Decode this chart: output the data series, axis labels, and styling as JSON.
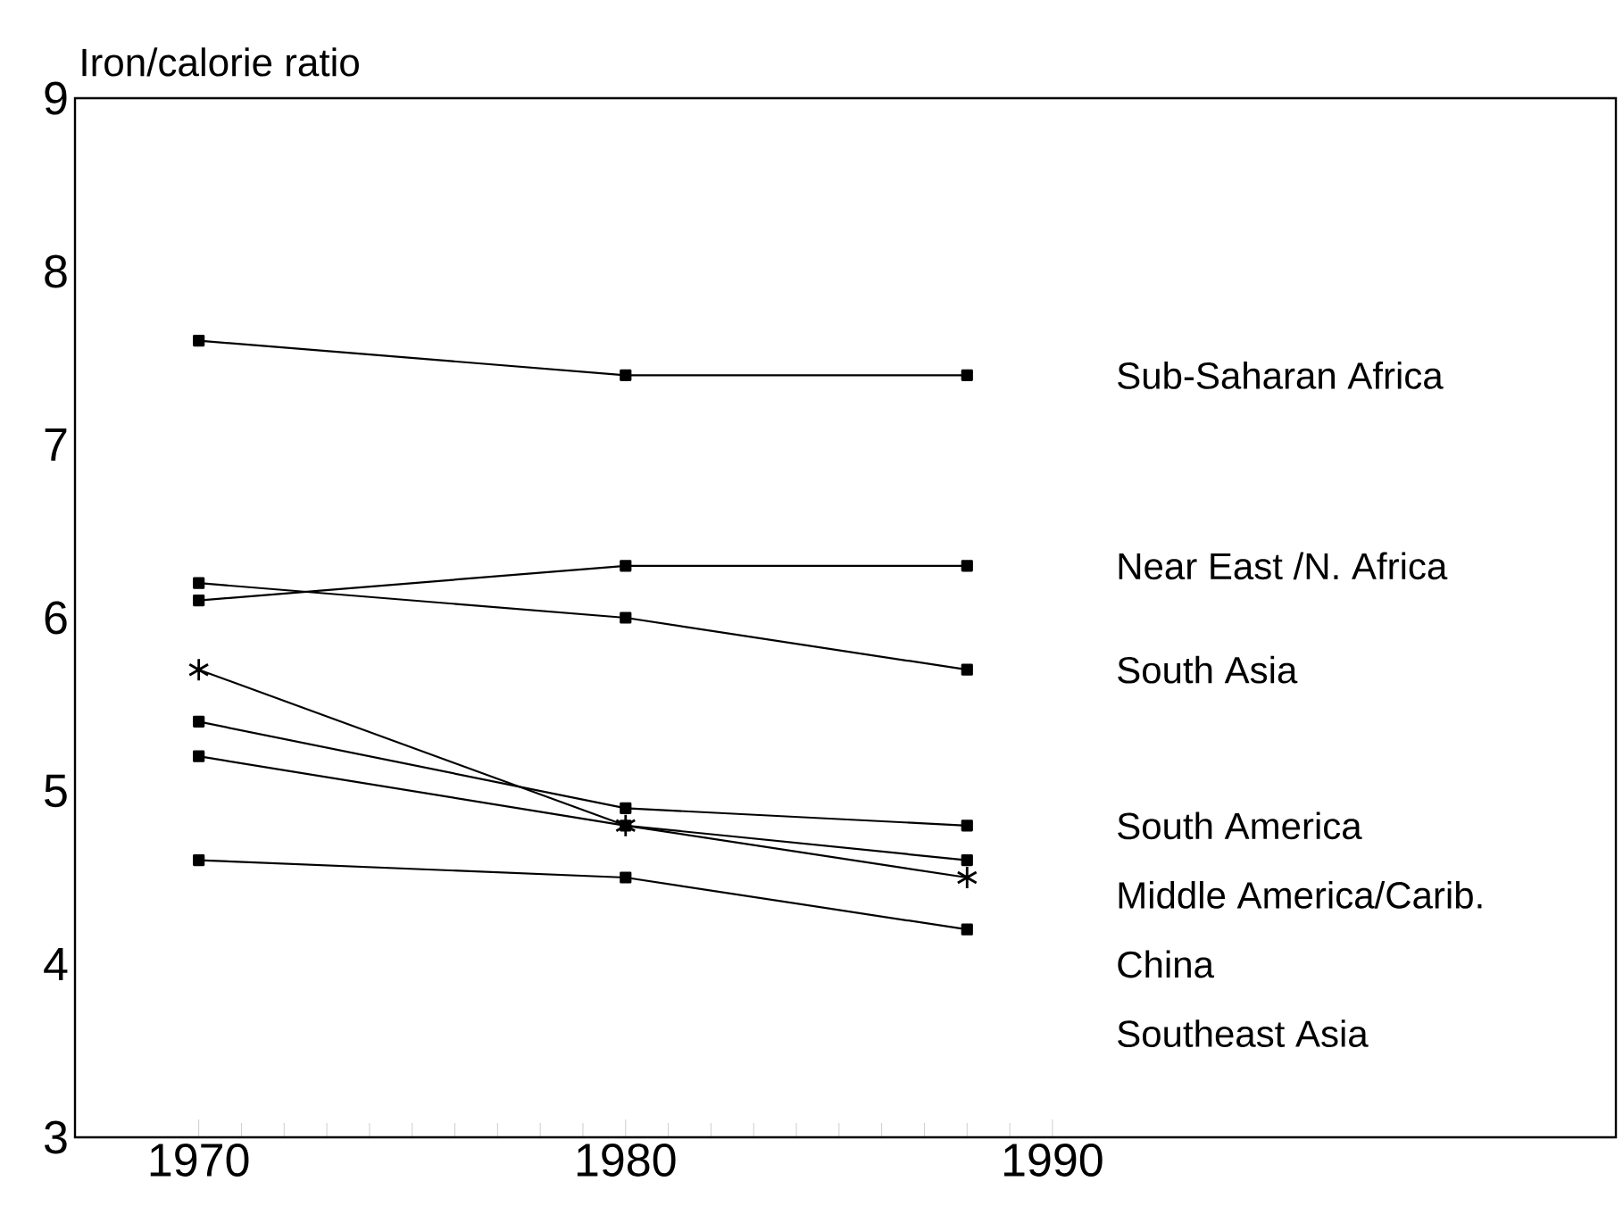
{
  "chart_data": {
    "type": "line",
    "ylabel": "Iron/calorie ratio",
    "x": [
      1970,
      1980,
      1988
    ],
    "xlim": [
      1967.1,
      2003.2
    ],
    "xticks": [
      1970,
      1980,
      1990
    ],
    "ylim": [
      3,
      9
    ],
    "yticks": [
      3,
      4,
      5,
      6,
      7,
      8,
      9
    ],
    "grid": false,
    "marker": "square",
    "line_style": "solid",
    "series": [
      {
        "name": "Sub-Saharan Africa",
        "color": "#000000",
        "values": [
          7.6,
          7.4,
          7.4
        ]
      },
      {
        "name": "Near East /N. Africa",
        "color": "#000000",
        "values": [
          6.1,
          6.3,
          6.3
        ]
      },
      {
        "name": "South Asia",
        "color": "#000000",
        "values": [
          6.2,
          6.0,
          5.7
        ]
      },
      {
        "name": "South America",
        "color": "#000000",
        "values": [
          5.4,
          4.9,
          4.8
        ]
      },
      {
        "name": "Middle America/Carib.",
        "color": "#000000",
        "values": [
          5.2,
          4.8,
          4.6
        ]
      },
      {
        "name": "China",
        "color": "#000000",
        "marker": "cross",
        "values": [
          5.7,
          4.8,
          4.5
        ]
      },
      {
        "name": "Southeast Asia",
        "color": "#000000",
        "values": [
          4.6,
          4.5,
          4.2
        ]
      }
    ]
  }
}
